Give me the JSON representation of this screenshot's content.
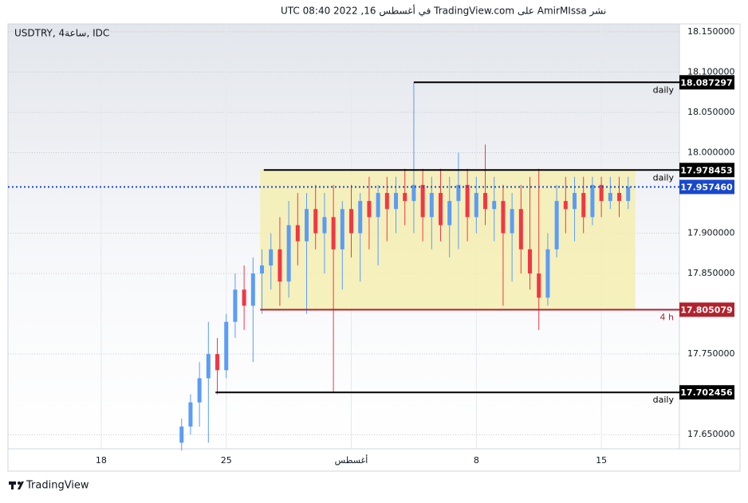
{
  "header": {
    "text": "نشر AmirMIssa على TradingView.com في أغسطس 16, 2022 08:40 UTC"
  },
  "footer": {
    "brand": "TradingView"
  },
  "chart_data": {
    "type": "candlestick",
    "symbol": "USDTRY, 4ساعة, IDC",
    "x": [
      22.5,
      23,
      23.5,
      24,
      24.5,
      25,
      25.5,
      26,
      26.5,
      27,
      27.5,
      28,
      28.5,
      29,
      29.5,
      30,
      30.5,
      31,
      31.5,
      32,
      32.5,
      33,
      33.5,
      34,
      34.5,
      35,
      35.5,
      36,
      36.5,
      37,
      37.5,
      38,
      38.5,
      39,
      39.5,
      40,
      40.5,
      41,
      41.5,
      42,
      42.5,
      43,
      43.5,
      44,
      44.5,
      45,
      45.5,
      46,
      46.5,
      47,
      47.5
    ],
    "open": [
      17.64,
      17.66,
      17.69,
      17.72,
      17.75,
      17.73,
      17.79,
      17.83,
      17.81,
      17.85,
      17.86,
      17.88,
      17.84,
      17.91,
      17.89,
      17.93,
      17.9,
      17.92,
      17.88,
      17.93,
      17.9,
      17.94,
      17.92,
      17.95,
      17.93,
      17.95,
      17.94,
      17.96,
      17.92,
      17.95,
      17.91,
      17.94,
      17.96,
      17.92,
      17.95,
      17.93,
      17.94,
      17.9,
      17.93,
      17.88,
      17.85,
      17.82,
      17.88,
      17.94,
      17.93,
      17.95,
      17.92,
      17.96,
      17.94,
      17.95,
      17.94
    ],
    "high": [
      17.67,
      17.7,
      17.74,
      17.79,
      17.77,
      17.8,
      17.85,
      17.86,
      17.87,
      17.88,
      17.9,
      17.92,
      17.94,
      17.95,
      17.95,
      17.96,
      17.95,
      17.96,
      17.94,
      17.96,
      17.95,
      17.97,
      17.96,
      17.97,
      17.97,
      17.98,
      18.087297,
      17.98,
      17.97,
      17.98,
      17.97,
      18.0,
      17.98,
      17.97,
      18.01,
      17.97,
      17.96,
      17.95,
      17.96,
      17.97,
      17.98,
      17.9,
      17.96,
      17.97,
      17.97,
      17.97,
      17.97,
      17.97,
      17.97,
      17.97,
      17.97
    ],
    "low": [
      17.63,
      17.65,
      17.66,
      17.64,
      17.7,
      17.72,
      17.77,
      17.78,
      17.74,
      17.8,
      17.83,
      17.81,
      17.82,
      17.86,
      17.8,
      17.88,
      17.85,
      17.702456,
      17.83,
      17.87,
      17.84,
      17.88,
      17.86,
      17.89,
      17.9,
      17.91,
      17.9,
      17.89,
      17.88,
      17.89,
      17.87,
      17.88,
      17.89,
      17.9,
      17.91,
      17.89,
      17.81,
      17.84,
      17.85,
      17.83,
      17.78,
      17.81,
      17.87,
      17.9,
      17.89,
      17.9,
      17.91,
      17.92,
      17.93,
      17.92,
      17.93
    ],
    "close": [
      17.66,
      17.69,
      17.72,
      17.75,
      17.73,
      17.79,
      17.83,
      17.81,
      17.85,
      17.86,
      17.88,
      17.84,
      17.91,
      17.89,
      17.93,
      17.9,
      17.92,
      17.88,
      17.93,
      17.9,
      17.94,
      17.92,
      17.95,
      17.93,
      17.95,
      17.94,
      17.96,
      17.92,
      17.95,
      17.91,
      17.94,
      17.96,
      17.92,
      17.95,
      17.93,
      17.94,
      17.9,
      17.93,
      17.88,
      17.85,
      17.82,
      17.88,
      17.94,
      17.93,
      17.95,
      17.92,
      17.96,
      17.94,
      17.95,
      17.94,
      17.95746
    ],
    "up_color": "#5b9cf6",
    "down_color": "#f23645",
    "xlim": [
      12.78,
      50.37
    ],
    "xticks": [
      18,
      25,
      {
        "value": 32,
        "label": "أغسطس"
      },
      {
        "value": 39,
        "label": "8"
      },
      {
        "value": 46,
        "label": "15"
      }
    ],
    "ylim": [
      17.6324,
      18.1598
    ],
    "yticks": [
      {
        "value": 18.15,
        "label": "18.150000"
      },
      {
        "value": 18.1,
        "label": "18.100000"
      },
      {
        "value": 18.05,
        "label": "18.050000"
      },
      {
        "value": 18.0,
        "label": "18.000000"
      },
      {
        "value": 17.9,
        "label": "17.900000"
      },
      {
        "value": 17.85,
        "label": "17.850000"
      },
      {
        "value": 17.75,
        "label": "17.750000"
      },
      {
        "value": 17.65,
        "label": "17.650000"
      }
    ],
    "grid": true,
    "levels": [
      {
        "value": 18.087297,
        "start": 35.5,
        "color": "#000000",
        "note": "daily"
      },
      {
        "value": 17.978453,
        "start": 27.1,
        "color": "#000000",
        "note": "daily"
      },
      {
        "value": 17.805079,
        "start": 26.9,
        "color": "#b2222c",
        "note": "4 h"
      },
      {
        "value": 17.702456,
        "start": 24.4,
        "color": "#000000",
        "note": "daily"
      },
      {
        "value": 17.95746,
        "label": "17.957460",
        "color": "#1848cc",
        "dotted": true
      }
    ],
    "zone": {
      "start": 26.9,
      "end": 47.9,
      "color": "#f5eeb0"
    }
  }
}
